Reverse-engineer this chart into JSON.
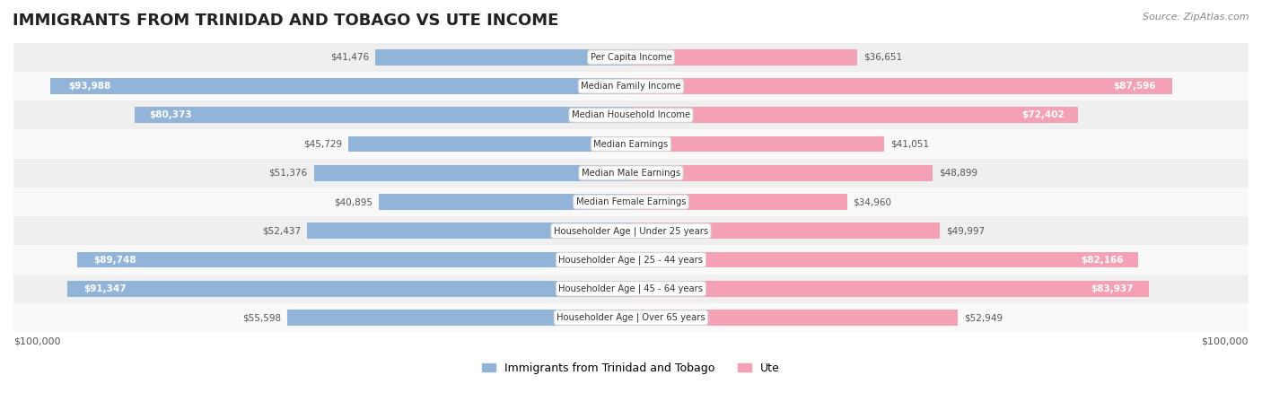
{
  "title": "IMMIGRANTS FROM TRINIDAD AND TOBAGO VS UTE INCOME",
  "source": "Source: ZipAtlas.com",
  "categories": [
    "Per Capita Income",
    "Median Family Income",
    "Median Household Income",
    "Median Earnings",
    "Median Male Earnings",
    "Median Female Earnings",
    "Householder Age | Under 25 years",
    "Householder Age | 25 - 44 years",
    "Householder Age | 45 - 64 years",
    "Householder Age | Over 65 years"
  ],
  "left_values": [
    41476,
    93988,
    80373,
    45729,
    51376,
    40895,
    52437,
    89748,
    91347,
    55598
  ],
  "right_values": [
    36651,
    87596,
    72402,
    41051,
    48899,
    34960,
    49997,
    82166,
    83937,
    52949
  ],
  "left_labels": [
    "$41,476",
    "$93,988",
    "$80,373",
    "$45,729",
    "$51,376",
    "$40,895",
    "$52,437",
    "$89,748",
    "$91,347",
    "$55,598"
  ],
  "right_labels": [
    "$36,651",
    "$87,596",
    "$72,402",
    "$41,051",
    "$48,899",
    "$34,960",
    "$49,997",
    "$82,166",
    "$83,937",
    "$52,949"
  ],
  "left_color": "#92b4d8",
  "right_color": "#f4a0b5",
  "left_color_dark": "#6699cc",
  "right_color_dark": "#f07090",
  "left_label_color_inside": "#ffffff",
  "left_label_color_outside": "#555555",
  "right_label_color_inside": "#ffffff",
  "right_label_color_outside": "#555555",
  "max_val": 100000,
  "legend_left": "Immigrants from Trinidad and Tobago",
  "legend_right": "Ute",
  "background_color": "#f5f5f5",
  "bar_background": "#e8e8e8",
  "row_bg_odd": "#efefef",
  "row_bg_even": "#f9f9f9",
  "inside_threshold": 60000
}
